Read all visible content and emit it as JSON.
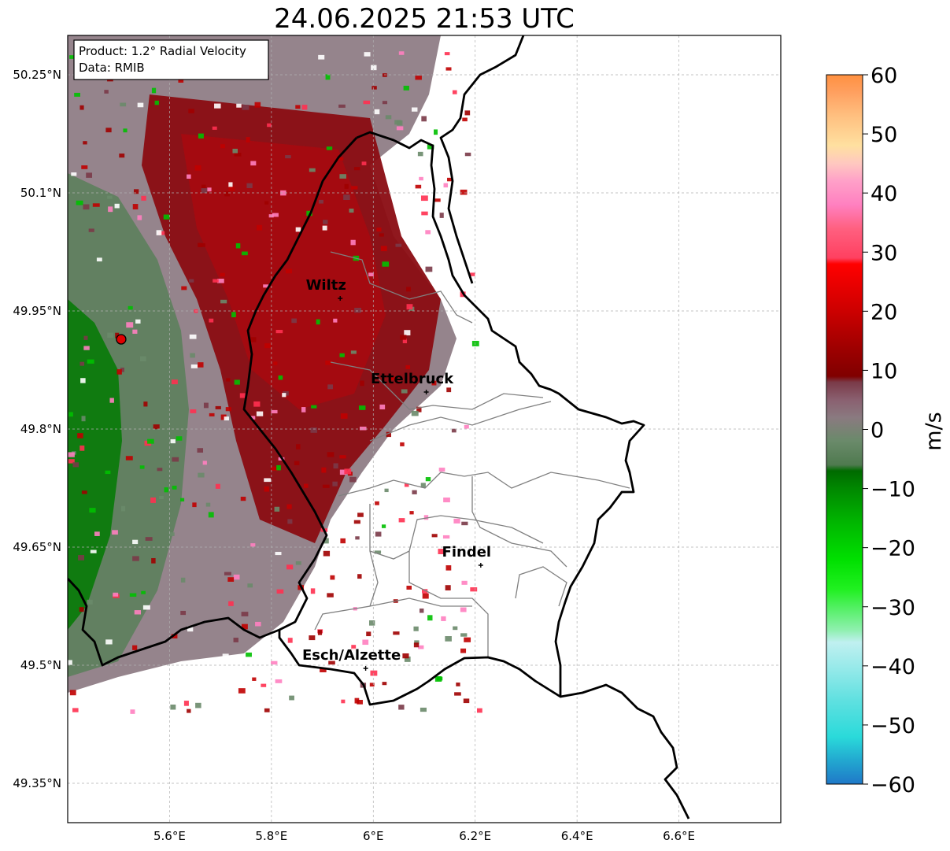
{
  "title": "24.06.2025 21:53 UTC",
  "info_box": {
    "product": "Product: 1.2° Radial Velocity",
    "source": "Data: RMIB"
  },
  "map": {
    "lon_range": [
      5.4,
      6.8
    ],
    "lat_range": [
      49.3,
      50.3
    ],
    "lon_ticks": [
      {
        "value": 5.6,
        "label": "5.6°E"
      },
      {
        "value": 5.8,
        "label": "5.8°E"
      },
      {
        "value": 6.0,
        "label": "6°E"
      },
      {
        "value": 6.2,
        "label": "6.2°E"
      },
      {
        "value": 6.4,
        "label": "6.4°E"
      },
      {
        "value": 6.6,
        "label": "6.6°E"
      }
    ],
    "lat_ticks": [
      {
        "value": 50.25,
        "label": "50.25°N"
      },
      {
        "value": 50.1,
        "label": "50.1°N"
      },
      {
        "value": 49.95,
        "label": "49.95°N"
      },
      {
        "value": 49.8,
        "label": "49.8°N"
      },
      {
        "value": 49.65,
        "label": "49.65°N"
      },
      {
        "value": 49.5,
        "label": "49.5°N"
      },
      {
        "value": 49.35,
        "label": "49.35°N"
      }
    ],
    "radar_site": {
      "lon": 5.505,
      "lat": 49.914
    },
    "cities": [
      {
        "name": "Wiltz",
        "lon": 5.935,
        "lat": 49.966
      },
      {
        "name": "Ettelbruck",
        "lon": 6.104,
        "lat": 49.847
      },
      {
        "name": "Findel",
        "lon": 6.211,
        "lat": 49.627
      },
      {
        "name": "Esch/Alzette",
        "lon": 5.985,
        "lat": 49.496
      }
    ]
  },
  "colorbar": {
    "unit": "m/s",
    "min": -60,
    "max": 60,
    "ticks": [
      {
        "value": 60,
        "label": "60"
      },
      {
        "value": 50,
        "label": "50"
      },
      {
        "value": 40,
        "label": "40"
      },
      {
        "value": 30,
        "label": "30"
      },
      {
        "value": 20,
        "label": "20"
      },
      {
        "value": 10,
        "label": "10"
      },
      {
        "value": 0,
        "label": "0"
      },
      {
        "value": -10,
        "label": "−10"
      },
      {
        "value": -20,
        "label": "−20"
      },
      {
        "value": -30,
        "label": "−30"
      },
      {
        "value": -40,
        "label": "−40"
      },
      {
        "value": -50,
        "label": "−50"
      },
      {
        "value": -60,
        "label": "−60"
      }
    ],
    "stops": [
      {
        "v": -60,
        "c": "#1f78c8"
      },
      {
        "v": -56,
        "c": "#22a8d0"
      },
      {
        "v": -52,
        "c": "#2adada"
      },
      {
        "v": -46,
        "c": "#5ee0e0"
      },
      {
        "v": -40,
        "c": "#9aeaea"
      },
      {
        "v": -36,
        "c": "#c0f0f0"
      },
      {
        "v": -34,
        "c": "#90f0b0"
      },
      {
        "v": -30,
        "c": "#50f060"
      },
      {
        "v": -27,
        "c": "#20f020"
      },
      {
        "v": -22,
        "c": "#00e000"
      },
      {
        "v": -16,
        "c": "#00b800"
      },
      {
        "v": -10,
        "c": "#008800"
      },
      {
        "v": -7,
        "c": "#006a00"
      },
      {
        "v": -6,
        "c": "#4f7a4f"
      },
      {
        "v": -2,
        "c": "#6a8a6a"
      },
      {
        "v": 2,
        "c": "#8a7a80"
      },
      {
        "v": 5,
        "c": "#8a6070"
      },
      {
        "v": 8,
        "c": "#7a3a48"
      },
      {
        "v": 9,
        "c": "#800000"
      },
      {
        "v": 14,
        "c": "#a00000"
      },
      {
        "v": 20,
        "c": "#cc0000"
      },
      {
        "v": 28,
        "c": "#ff0000"
      },
      {
        "v": 29,
        "c": "#ff4060"
      },
      {
        "v": 34,
        "c": "#ff6080"
      },
      {
        "v": 38,
        "c": "#ff80c0"
      },
      {
        "v": 42,
        "c": "#ffa0c8"
      },
      {
        "v": 45,
        "c": "#ffc8c0"
      },
      {
        "v": 48,
        "c": "#ffe0a0"
      },
      {
        "v": 53,
        "c": "#ffc080"
      },
      {
        "v": 57,
        "c": "#ffa060"
      },
      {
        "v": 60,
        "c": "#ff9040"
      }
    ]
  }
}
